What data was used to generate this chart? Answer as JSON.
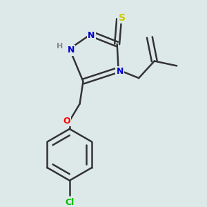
{
  "bg_color": "#dde8e8",
  "atom_colors": {
    "N": "#0000cc",
    "S": "#cccc00",
    "O": "#ff0000",
    "Cl": "#00bb00",
    "C": "#222222",
    "H": "#888888"
  },
  "bond_color": "#333333",
  "bond_color_dark": "#222222",
  "figsize": [
    3.0,
    3.0
  ],
  "dpi": 100
}
